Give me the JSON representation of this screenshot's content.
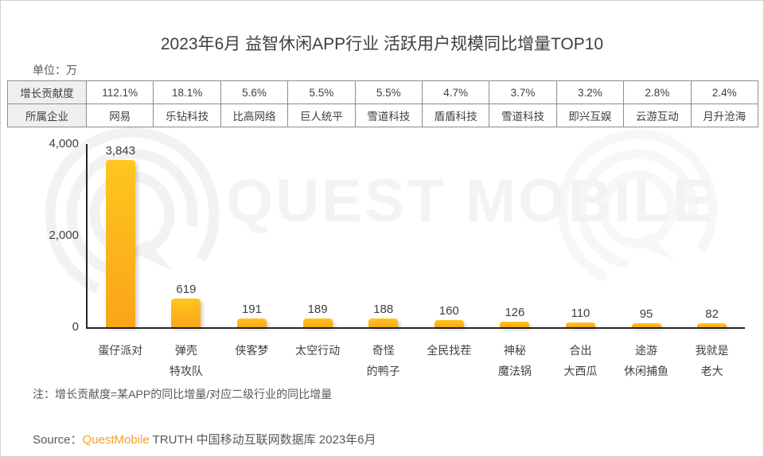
{
  "title": "2023年6月 益智休闲APP行业 活跃用户规模同比增量TOP10",
  "unit_label": "单位：万",
  "table": {
    "row1_header": "增长贡献度",
    "row2_header": "所属企业",
    "contributions": [
      "112.1%",
      "18.1%",
      "5.6%",
      "5.5%",
      "5.5%",
      "4.7%",
      "3.7%",
      "3.2%",
      "2.8%",
      "2.4%"
    ],
    "companies": [
      "网易",
      "乐钻科技",
      "比高网络",
      "巨人统平",
      "雪道科技",
      "盾盾科技",
      "雪道科技",
      "即兴互娱",
      "云游互动",
      "月升沧海"
    ]
  },
  "chart_data": {
    "type": "bar",
    "title": "2023年6月 益智休闲APP行业 活跃用户规模同比增量TOP10",
    "unit": "万",
    "categories": [
      "蛋仔派对",
      "弹壳特攻队",
      "侠客梦",
      "太空行动",
      "奇怪的鸭子",
      "全民找茬",
      "神秘魔法锅",
      "合出大西瓜",
      "途游休闲捕鱼",
      "我就是老大"
    ],
    "category_lines": [
      [
        "蛋仔派对"
      ],
      [
        "弹壳",
        "特攻队"
      ],
      [
        "侠客梦"
      ],
      [
        "太空行动"
      ],
      [
        "奇怪",
        "的鸭子"
      ],
      [
        "全民找茬"
      ],
      [
        "神秘",
        "魔法锅"
      ],
      [
        "合出",
        "大西瓜"
      ],
      [
        "途游",
        "休闲捕鱼"
      ],
      [
        "我就是",
        "老大"
      ]
    ],
    "values": [
      3843,
      619,
      191,
      189,
      188,
      160,
      126,
      110,
      95,
      82
    ],
    "value_labels": [
      "3,843",
      "619",
      "191",
      "189",
      "188",
      "160",
      "126",
      "110",
      "95",
      "82"
    ],
    "xlabel": "",
    "ylabel": "单位：万",
    "ylim": [
      0,
      4000
    ],
    "yticks": [
      {
        "value": 4000,
        "label": "4,000"
      },
      {
        "value": 2000,
        "label": "2,000"
      },
      {
        "value": 0,
        "label": "0"
      }
    ],
    "grid": false,
    "legend": false,
    "bar_color_top": "#FFC61E",
    "bar_color_bottom": "#F9A51A"
  },
  "watermark": {
    "text": "QUEST MOBILE"
  },
  "note": "注：增长贡献度=某APP的同比增量/对应二级行业的同比增量",
  "source": {
    "prefix": "Source：",
    "brand": "QuestMobile",
    "suffix": " TRUTH 中国移动互联网数据库 2023年6月",
    "brand_color": "#F9A01B"
  }
}
